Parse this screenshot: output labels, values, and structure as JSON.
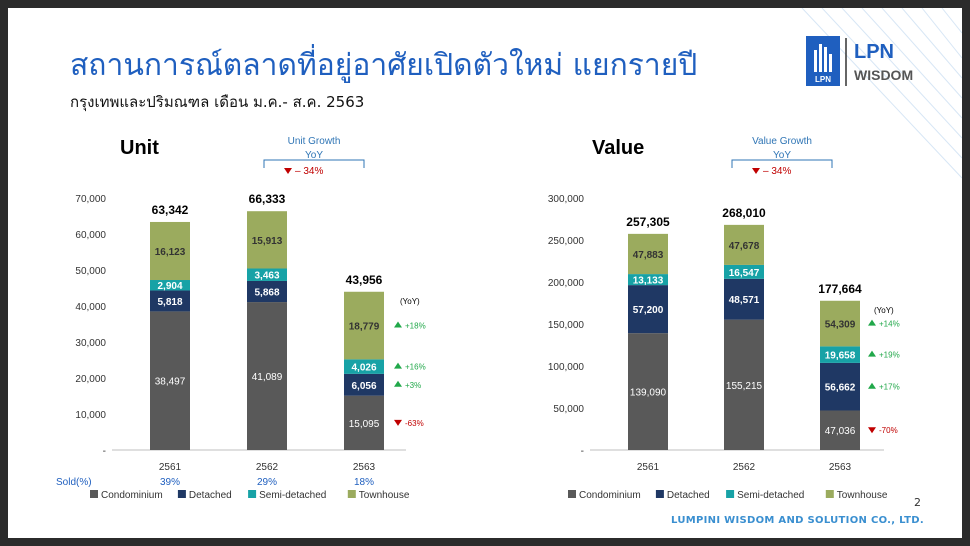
{
  "slide": {
    "title": "สถานการณ์ตลาดที่อยู่อาศัยเปิดตัวใหม่ แยกรายปี",
    "subtitle": "กรุงเทพและปริมณฑล เดือน ม.ค.- ส.ค. 2563",
    "logo": {
      "mark_text": "LPN",
      "brand_top": "LPN",
      "brand_bottom": "WISDOM"
    },
    "page_number": "2",
    "footer": "LUMPINI WISDOM AND SOLUTION CO., LTD."
  },
  "colors": {
    "condominium": "#595959",
    "detached": "#1f3864",
    "semi_detached": "#17a2a6",
    "townhouse": "#9bab5e",
    "title": "#1f5fbf",
    "growth_label": "#2f75b5",
    "up": "#21a84a",
    "down": "#c00000"
  },
  "chart_data": [
    {
      "type": "bar",
      "stacked": true,
      "title": "Unit",
      "categories": [
        "2561",
        "2562",
        "2563"
      ],
      "ylim": [
        0,
        70000
      ],
      "yticks": [
        "70,000",
        "60,000",
        "50,000",
        "40,000",
        "30,000",
        "20,000",
        "10,000",
        "-"
      ],
      "series": [
        {
          "name": "Condominium",
          "values": [
            38497,
            41089,
            15095
          ],
          "labels": [
            "38,497",
            "41,089",
            "15,095"
          ]
        },
        {
          "name": "Detached",
          "values": [
            5818,
            5868,
            6056
          ],
          "labels": [
            "5,818",
            "5,868",
            "6,056"
          ]
        },
        {
          "name": "Semi-detached",
          "values": [
            2904,
            3463,
            4026
          ],
          "labels": [
            "2,904",
            "3,463",
            "4,026"
          ]
        },
        {
          "name": "Townhouse",
          "values": [
            16123,
            15913,
            18779
          ],
          "labels": [
            "16,123",
            "15,913",
            "18,779"
          ]
        }
      ],
      "totals": [
        "63,342",
        "66,333",
        "43,956"
      ],
      "growth_box": {
        "line1": "Unit Growth",
        "line2": "YoY",
        "value": "– 34%",
        "direction": "down"
      },
      "yoy_header": "(YoY)",
      "yoy": [
        {
          "series": "Townhouse",
          "value": "+18%",
          "direction": "up"
        },
        {
          "series": "Semi-detached",
          "value": "+16%",
          "direction": "up"
        },
        {
          "series": "Detached",
          "value": "+3%",
          "direction": "up"
        },
        {
          "series": "Condominium",
          "value": "-63%",
          "direction": "down"
        }
      ],
      "sold_label": "Sold(%)",
      "sold": [
        "39%",
        "29%",
        "18%"
      ],
      "legend": [
        "Condominium",
        "Detached",
        "Semi-detached",
        "Townhouse"
      ],
      "legend_position": "bottom"
    },
    {
      "type": "bar",
      "stacked": true,
      "title": "Value",
      "categories": [
        "2561",
        "2562",
        "2563"
      ],
      "ylim": [
        0,
        300000
      ],
      "yticks": [
        "300,000",
        "250,000",
        "200,000",
        "150,000",
        "100,000",
        "50,000",
        "-"
      ],
      "series": [
        {
          "name": "Condominium",
          "values": [
            139090,
            155215,
            47036
          ],
          "labels": [
            "139,090",
            "155,215",
            "47,036"
          ]
        },
        {
          "name": "Detached",
          "values": [
            57200,
            48571,
            56662
          ],
          "labels": [
            "57,200",
            "48,571",
            "56,662"
          ]
        },
        {
          "name": "Semi-detached",
          "values": [
            13133,
            16547,
            19658
          ],
          "labels": [
            "13,133",
            "16,547",
            "19,658"
          ]
        },
        {
          "name": "Townhouse",
          "values": [
            47883,
            47678,
            54309
          ],
          "labels": [
            "47,883",
            "47,678",
            "54,309"
          ]
        }
      ],
      "totals": [
        "257,305",
        "268,010",
        "177,664"
      ],
      "growth_box": {
        "line1": "Value Growth",
        "line2": "YoY",
        "value": "– 34%",
        "direction": "down"
      },
      "yoy_header": "(YoY)",
      "yoy": [
        {
          "series": "Townhouse",
          "value": "+14%",
          "direction": "up"
        },
        {
          "series": "Semi-detached",
          "value": "+19%",
          "direction": "up"
        },
        {
          "series": "Detached",
          "value": "+17%",
          "direction": "up"
        },
        {
          "series": "Condominium",
          "value": "-70%",
          "direction": "down"
        }
      ],
      "legend": [
        "Condominium",
        "Detached",
        "Semi-detached",
        "Townhouse"
      ],
      "legend_position": "bottom"
    }
  ]
}
